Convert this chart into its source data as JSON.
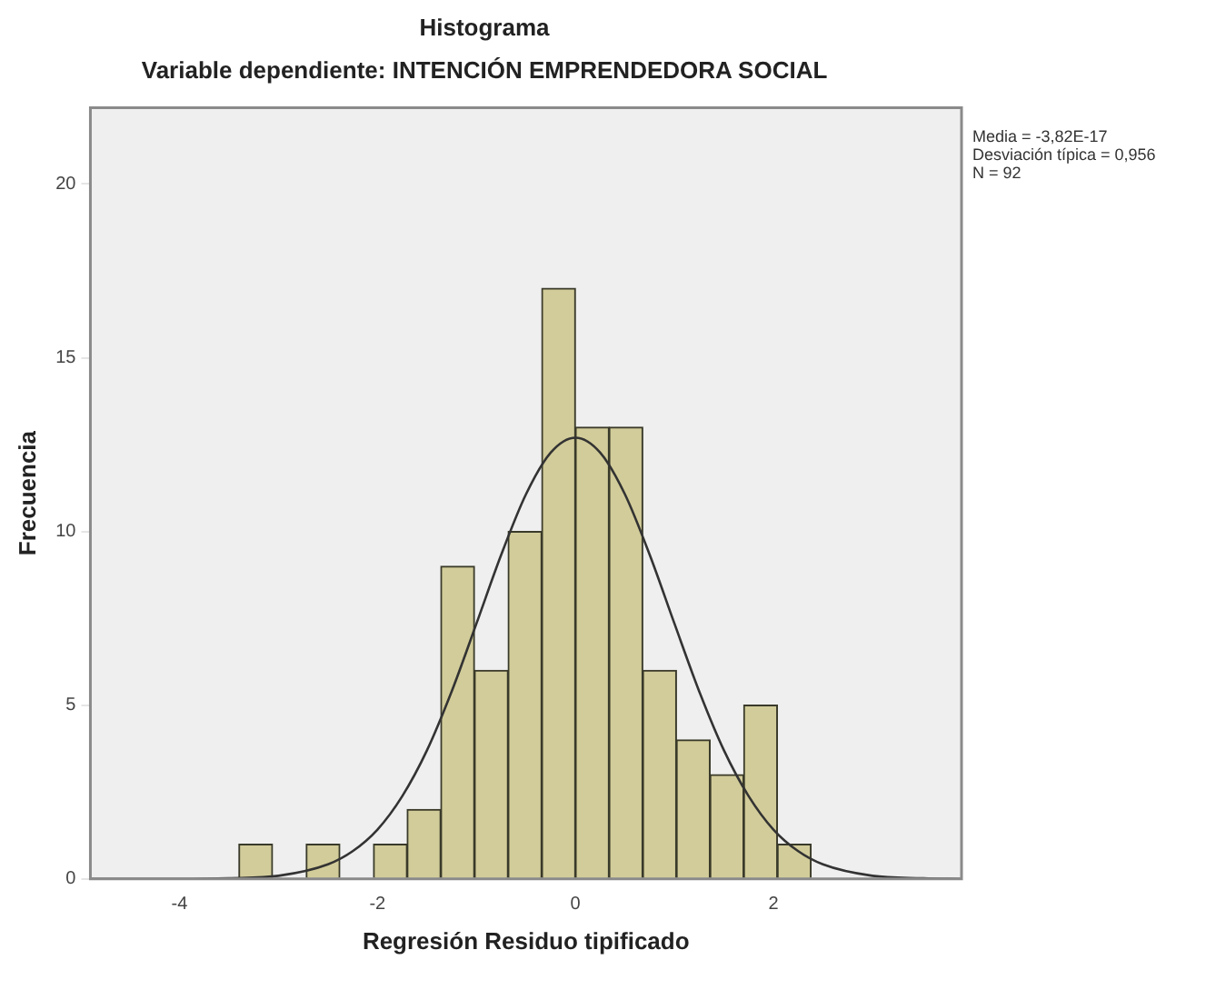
{
  "chart_data": {
    "type": "histogram",
    "title": "Histograma",
    "subtitle": "Variable dependiente: INTENCIÓN EMPRENDEDORA SOCIAL",
    "xlabel": "Regresión Residuo tipificado",
    "ylabel": "Frecuencia",
    "bins": [
      -3.4,
      -3.06,
      -2.72,
      -2.38,
      -2.04,
      -1.7,
      -1.36,
      -1.02,
      -0.68,
      -0.34,
      0,
      0.34,
      0.68,
      1.02,
      1.36,
      1.7,
      2.04,
      2.38
    ],
    "values": [
      1,
      0,
      1,
      0,
      1,
      2,
      9,
      6,
      10,
      17,
      13,
      13,
      6,
      4,
      3,
      5,
      1
    ],
    "color": "#d2cc9a",
    "series": [
      {
        "type": "line",
        "color": "#333333",
        "x": [
          -4.9,
          -4,
          -3.5,
          -3,
          -2.5,
          -2.25,
          -2,
          -1.75,
          -1.5,
          -1.25,
          -1,
          -0.75,
          -0.5,
          -0.25,
          0,
          0.25,
          0.5,
          0.75,
          1,
          1.25,
          1.5,
          1.75,
          2,
          2.25,
          2.5,
          3,
          3.5,
          3.9
        ],
        "values": [
          0,
          0,
          0.02,
          0.09,
          0.42,
          0.8,
          1.42,
          2.38,
          3.7,
          5.4,
          7.35,
          9.33,
          11.07,
          12.27,
          12.7,
          12.27,
          11.07,
          9.33,
          7.35,
          5.4,
          3.7,
          2.38,
          1.42,
          0.8,
          0.42,
          0.09,
          0.02,
          0
        ]
      }
    ],
    "xlim": [
      -4.9,
      3.9
    ],
    "xticks": [
      -4,
      -2,
      0,
      2
    ],
    "ylim": [
      0,
      22.2
    ],
    "yticks": [
      0,
      5,
      10,
      15,
      20
    ],
    "grid": false,
    "legend": false,
    "marker": "none",
    "annotations": [
      "Media = -3,82E-17",
      "Desviación típica = 0,956",
      "N = 92"
    ]
  }
}
